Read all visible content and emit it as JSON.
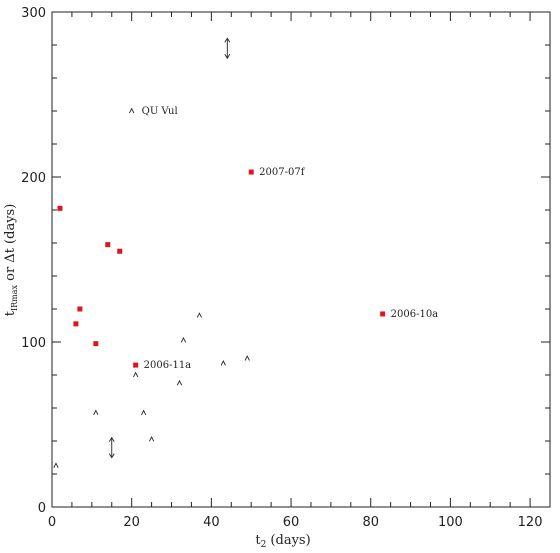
{
  "chart_data": {
    "type": "scatter",
    "title": "",
    "xlabel": {
      "base": "t",
      "sub": "2",
      "rest": " (days)"
    },
    "ylabel": {
      "base": "t",
      "sub": "IRmax",
      "rest": " or Δt (days)"
    },
    "xlim": [
      0,
      125
    ],
    "ylim": [
      0,
      300
    ],
    "xticks": [
      0,
      20,
      40,
      60,
      80,
      100,
      120
    ],
    "yticks": [
      0,
      100,
      200,
      300
    ],
    "grid": false,
    "series": [
      {
        "marker": "square",
        "color": "#e0141b",
        "points": [
          {
            "x": 2,
            "y": 181
          },
          {
            "x": 14,
            "y": 159
          },
          {
            "x": 17,
            "y": 155
          },
          {
            "x": 7,
            "y": 120
          },
          {
            "x": 6,
            "y": 111
          },
          {
            "x": 11,
            "y": 99
          },
          {
            "x": 21,
            "y": 86
          },
          {
            "x": 50,
            "y": 203
          },
          {
            "x": 83,
            "y": 117
          }
        ]
      },
      {
        "marker": "triangle",
        "color": "#222222",
        "points": [
          {
            "x": 20,
            "y": 240
          },
          {
            "x": 33,
            "y": 101
          },
          {
            "x": 37,
            "y": 116
          },
          {
            "x": 43,
            "y": 87
          },
          {
            "x": 49,
            "y": 90
          },
          {
            "x": 21,
            "y": 80
          },
          {
            "x": 32,
            "y": 75
          },
          {
            "x": 11,
            "y": 57
          },
          {
            "x": 23,
            "y": 57
          },
          {
            "x": 25,
            "y": 41
          },
          {
            "x": 1,
            "y": 25
          }
        ]
      }
    ],
    "limit_arrows": [
      {
        "x": 44,
        "y": 278
      },
      {
        "x": 15,
        "y": 36
      }
    ],
    "annotations": [
      {
        "text": "QU Vul",
        "x": 22.5,
        "y": 240
      },
      {
        "text": "2007-07f",
        "x": 52,
        "y": 203
      },
      {
        "text": "2006-10a",
        "x": 85,
        "y": 117
      },
      {
        "text": "2006-11a",
        "x": 23,
        "y": 86
      }
    ]
  }
}
